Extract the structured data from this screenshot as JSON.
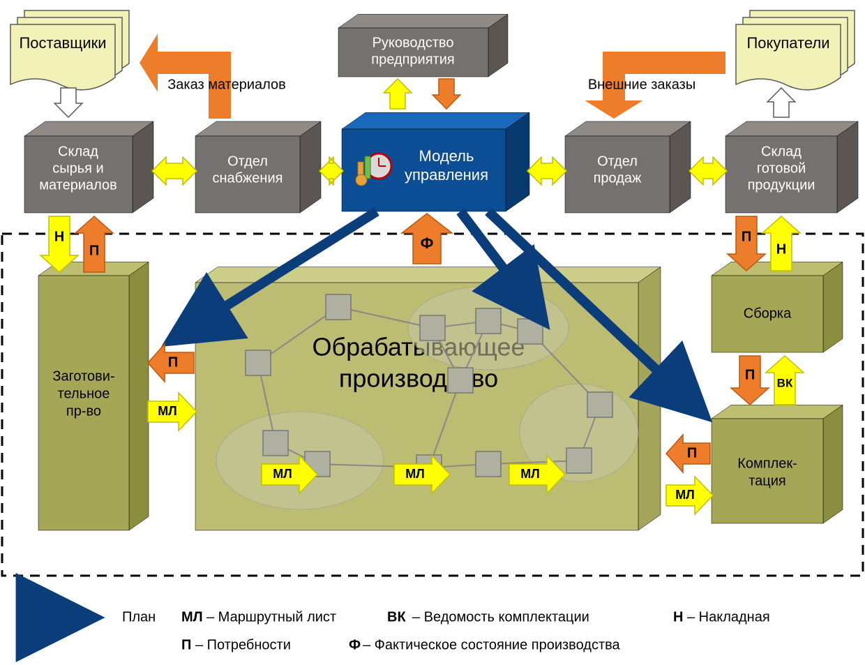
{
  "colors": {
    "gray_face": "#767171",
    "gray_side": "#5b5652",
    "gray_top": "#8f8a86",
    "blue_face": "#0c4e95",
    "blue_side": "#083a6f",
    "blue_top": "#1a68bb",
    "olive_face": "#a6a756",
    "olive_side": "#8b8d3f",
    "olive_top": "#bdbe6f",
    "olive_big_face": "#bcbc72",
    "olive_big_side": "#a4a45a",
    "olive_big_top": "#cccd89",
    "yellow": "#ffff00",
    "orange": "#ed7d2b",
    "dark_blue": "#0a3d7a",
    "doc_yellow": "#f2f2b8",
    "doc_stroke": "#5a5a5a",
    "net_fill": "#b0b0a0",
    "net_ellipse": "#c8c8a8",
    "text_white": "#ffffff",
    "text_black": "#000000",
    "dash": "#000000"
  },
  "nodes": {
    "suppliers": {
      "label": "Поставщики"
    },
    "buyers": {
      "label": "Покупатели"
    },
    "management": {
      "line1": "Руководство",
      "line2": "предприятия"
    },
    "raw_warehouse": {
      "line1": "Склад",
      "line2": "сырья и",
      "line3": "материалов"
    },
    "supply_dept": {
      "line1": "Отдел",
      "line2": "снабжения"
    },
    "model": {
      "line1": "Модель",
      "line2": "управления"
    },
    "sales_dept": {
      "line1": "Отдел",
      "line2": "продаж"
    },
    "finished_warehouse": {
      "line1": "Склад",
      "line2": "готовой",
      "line3": "продукции"
    },
    "pre_production": {
      "line1": "Заготови-",
      "line2": "тельное",
      "line3": "пр-во"
    },
    "processing": {
      "line1": "Обрабатывающее",
      "line2": "производство"
    },
    "assembly": {
      "label": "Сборка"
    },
    "packaging": {
      "line1": "Комплек-",
      "line2": "тация"
    }
  },
  "labels": {
    "order_materials": "Заказ материалов",
    "external_orders": "Внешние заказы"
  },
  "arrow_tags": {
    "N": "Н",
    "P": "П",
    "F": "Ф",
    "ML": "МЛ",
    "VK": "ВК"
  },
  "legend": {
    "plan": "План",
    "ml": {
      "abbr": "МЛ",
      "text": " – Маршрутный лист"
    },
    "vk": {
      "abbr": "ВК",
      "text": " – Ведомость комплектации"
    },
    "n": {
      "abbr": "Н",
      "text": " – Накладная"
    },
    "p": {
      "abbr": "П",
      "text": " – Потребности"
    },
    "f": {
      "abbr": "Ф",
      "text": " – Фактическое состояние производства"
    }
  },
  "fonts": {
    "node": 20,
    "node_small": 19,
    "big_title": 36,
    "tag": 20,
    "label": 20,
    "legend": 20
  }
}
